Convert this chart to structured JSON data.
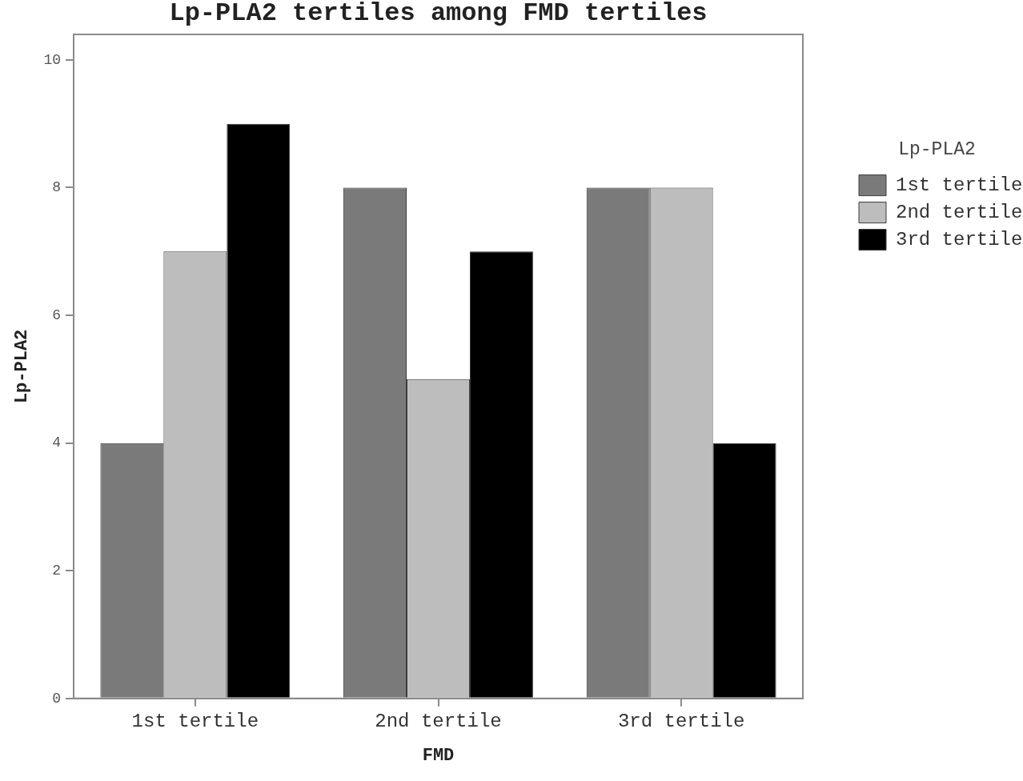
{
  "chart_data": {
    "type": "bar",
    "title": "Lp-PLA2 tertiles among FMD tertiles",
    "xlabel": "FMD",
    "ylabel": "Lp-PLA2",
    "legend_title": "Lp-PLA2",
    "categories": [
      "1st tertile",
      "2nd tertile",
      "3rd tertile"
    ],
    "series": [
      {
        "name": "1st tertile",
        "color": "#7a7a7a",
        "values": [
          4,
          8,
          8
        ]
      },
      {
        "name": "2nd tertile",
        "color": "#bdbdbd",
        "values": [
          7,
          5,
          8
        ]
      },
      {
        "name": "3rd tertile",
        "color": "#000000",
        "values": [
          9,
          7,
          4
        ]
      }
    ],
    "ylim": [
      0,
      10.4
    ],
    "yticks": [
      0,
      2,
      4,
      6,
      8,
      10
    ],
    "grid": false,
    "legend": "right"
  }
}
